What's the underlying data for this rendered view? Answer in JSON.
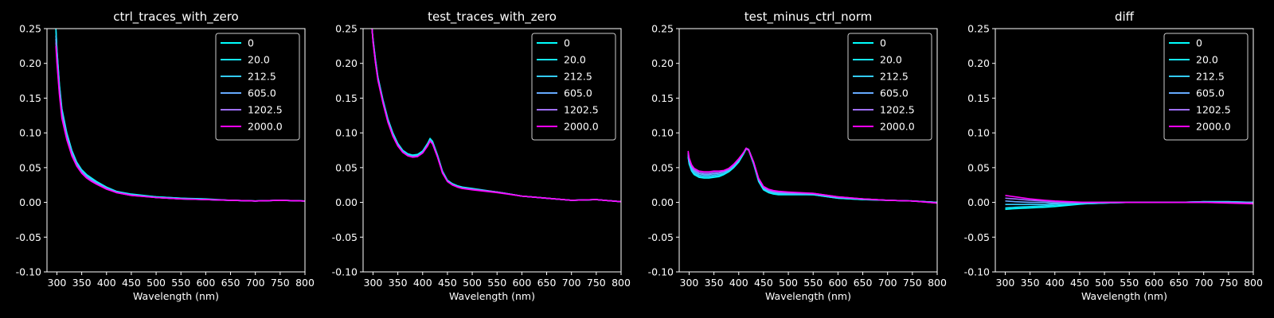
{
  "figure": {
    "background": "#000000",
    "foreground": "#ffffff"
  },
  "chart_data": [
    {
      "type": "line",
      "title": "ctrl_traces_with_zero",
      "xlabel": "Wavelength (nm)",
      "ylabel": "",
      "xlim": [
        280,
        800
      ],
      "ylim": [
        -0.1,
        0.25
      ],
      "xticks": [
        "300",
        "350",
        "400",
        "450",
        "500",
        "550",
        "600",
        "650",
        "700",
        "750",
        "800"
      ],
      "yticks": [
        "0.25",
        "0.20",
        "0.15",
        "0.10",
        "0.05",
        "0.00",
        "-0.05",
        "-0.10"
      ],
      "legend_position": "top-right",
      "x": [
        298,
        300,
        305,
        310,
        320,
        330,
        340,
        350,
        360,
        370,
        380,
        400,
        420,
        450,
        500,
        550,
        600,
        650,
        700,
        750,
        800
      ],
      "series": [
        {
          "name": "0",
          "color": "#00ffff",
          "values": [
            0.25,
            0.22,
            0.17,
            0.135,
            0.1,
            0.075,
            0.058,
            0.047,
            0.04,
            0.035,
            0.03,
            0.022,
            0.016,
            0.012,
            0.008,
            0.006,
            0.005,
            0.003,
            0.002,
            0.003,
            0.002
          ]
        },
        {
          "name": "20.0",
          "color": "#17e8ff",
          "values": [
            0.25,
            0.22,
            0.168,
            0.133,
            0.099,
            0.074,
            0.057,
            0.046,
            0.039,
            0.034,
            0.029,
            0.021,
            0.016,
            0.011,
            0.008,
            0.006,
            0.004,
            0.003,
            0.002,
            0.003,
            0.002
          ]
        },
        {
          "name": "212.5",
          "color": "#33ccff",
          "values": [
            0.24,
            0.215,
            0.165,
            0.13,
            0.097,
            0.072,
            0.056,
            0.045,
            0.038,
            0.033,
            0.028,
            0.021,
            0.015,
            0.011,
            0.007,
            0.005,
            0.004,
            0.003,
            0.002,
            0.003,
            0.002
          ]
        },
        {
          "name": "605.0",
          "color": "#66aaff",
          "values": [
            0.235,
            0.21,
            0.162,
            0.128,
            0.095,
            0.071,
            0.055,
            0.044,
            0.037,
            0.032,
            0.028,
            0.02,
            0.015,
            0.011,
            0.007,
            0.005,
            0.004,
            0.003,
            0.002,
            0.003,
            0.002
          ]
        },
        {
          "name": "1202.5",
          "color": "#a070ff",
          "values": [
            0.23,
            0.205,
            0.158,
            0.124,
            0.092,
            0.069,
            0.053,
            0.043,
            0.036,
            0.031,
            0.027,
            0.02,
            0.014,
            0.01,
            0.007,
            0.005,
            0.004,
            0.003,
            0.002,
            0.003,
            0.002
          ]
        },
        {
          "name": "2000.0",
          "color": "#ff00ff",
          "values": [
            0.225,
            0.2,
            0.155,
            0.121,
            0.09,
            0.067,
            0.052,
            0.042,
            0.035,
            0.03,
            0.026,
            0.019,
            0.014,
            0.01,
            0.007,
            0.005,
            0.004,
            0.003,
            0.002,
            0.003,
            0.002
          ]
        }
      ]
    },
    {
      "type": "line",
      "title": "test_traces_with_zero",
      "xlabel": "Wavelength (nm)",
      "ylabel": "",
      "xlim": [
        280,
        800
      ],
      "ylim": [
        -0.1,
        0.25
      ],
      "xticks": [
        "300",
        "350",
        "400",
        "450",
        "500",
        "550",
        "600",
        "650",
        "700",
        "750",
        "800"
      ],
      "yticks": [
        "0.25",
        "0.20",
        "0.15",
        "0.10",
        "0.05",
        "0.00",
        "-0.05",
        "-0.10"
      ],
      "legend_position": "top-right",
      "x": [
        298,
        300,
        305,
        310,
        320,
        330,
        340,
        350,
        360,
        370,
        380,
        390,
        400,
        410,
        415,
        420,
        430,
        440,
        450,
        460,
        470,
        480,
        500,
        550,
        600,
        650,
        700,
        750,
        800
      ],
      "series": [
        {
          "name": "0",
          "color": "#00ffff",
          "values": [
            0.25,
            0.235,
            0.205,
            0.18,
            0.148,
            0.12,
            0.1,
            0.085,
            0.075,
            0.07,
            0.068,
            0.069,
            0.074,
            0.085,
            0.092,
            0.088,
            0.068,
            0.045,
            0.032,
            0.027,
            0.024,
            0.022,
            0.02,
            0.015,
            0.009,
            0.006,
            0.003,
            0.004,
            0.001
          ]
        },
        {
          "name": "20.0",
          "color": "#17e8ff",
          "values": [
            0.25,
            0.234,
            0.204,
            0.179,
            0.147,
            0.119,
            0.099,
            0.084,
            0.074,
            0.069,
            0.067,
            0.068,
            0.073,
            0.084,
            0.091,
            0.087,
            0.067,
            0.044,
            0.031,
            0.026,
            0.023,
            0.021,
            0.019,
            0.015,
            0.009,
            0.006,
            0.003,
            0.004,
            0.001
          ]
        },
        {
          "name": "212.5",
          "color": "#33ccff",
          "values": [
            0.25,
            0.233,
            0.203,
            0.178,
            0.146,
            0.118,
            0.098,
            0.083,
            0.074,
            0.068,
            0.066,
            0.067,
            0.072,
            0.083,
            0.09,
            0.086,
            0.066,
            0.044,
            0.031,
            0.026,
            0.023,
            0.021,
            0.019,
            0.015,
            0.009,
            0.006,
            0.003,
            0.004,
            0.001
          ]
        },
        {
          "name": "605.0",
          "color": "#66aaff",
          "values": [
            0.25,
            0.232,
            0.202,
            0.177,
            0.145,
            0.117,
            0.097,
            0.083,
            0.073,
            0.068,
            0.066,
            0.067,
            0.072,
            0.083,
            0.089,
            0.085,
            0.066,
            0.043,
            0.031,
            0.026,
            0.023,
            0.021,
            0.019,
            0.015,
            0.009,
            0.006,
            0.003,
            0.004,
            0.001
          ]
        },
        {
          "name": "1202.5",
          "color": "#a070ff",
          "values": [
            0.25,
            0.231,
            0.201,
            0.176,
            0.144,
            0.116,
            0.096,
            0.082,
            0.072,
            0.067,
            0.065,
            0.066,
            0.071,
            0.082,
            0.089,
            0.085,
            0.065,
            0.043,
            0.03,
            0.025,
            0.022,
            0.02,
            0.019,
            0.015,
            0.009,
            0.006,
            0.003,
            0.004,
            0.001
          ]
        },
        {
          "name": "2000.0",
          "color": "#ff00ff",
          "values": [
            0.25,
            0.23,
            0.2,
            0.175,
            0.143,
            0.115,
            0.095,
            0.081,
            0.072,
            0.067,
            0.065,
            0.066,
            0.071,
            0.081,
            0.088,
            0.084,
            0.065,
            0.042,
            0.03,
            0.025,
            0.022,
            0.02,
            0.018,
            0.014,
            0.009,
            0.006,
            0.003,
            0.004,
            0.001
          ]
        }
      ]
    },
    {
      "type": "line",
      "title": "test_minus_ctrl_norm",
      "xlabel": "Wavelength (nm)",
      "ylabel": "",
      "xlim": [
        280,
        800
      ],
      "ylim": [
        -0.1,
        0.25
      ],
      "xticks": [
        "300",
        "350",
        "400",
        "450",
        "500",
        "550",
        "600",
        "650",
        "700",
        "750",
        "800"
      ],
      "yticks": [
        "0.25",
        "0.20",
        "0.15",
        "0.10",
        "0.05",
        "0.00",
        "-0.05",
        "-0.10"
      ],
      "legend_position": "top-right",
      "x": [
        298,
        300,
        305,
        310,
        320,
        330,
        340,
        350,
        360,
        370,
        380,
        390,
        400,
        410,
        415,
        420,
        430,
        440,
        450,
        460,
        470,
        480,
        500,
        550,
        600,
        650,
        700,
        750,
        800
      ],
      "series": [
        {
          "name": "0",
          "color": "#00ffff",
          "values": [
            0.065,
            0.055,
            0.045,
            0.04,
            0.036,
            0.035,
            0.035,
            0.036,
            0.037,
            0.04,
            0.044,
            0.05,
            0.058,
            0.07,
            0.077,
            0.075,
            0.055,
            0.03,
            0.018,
            0.014,
            0.012,
            0.011,
            0.011,
            0.011,
            0.006,
            0.004,
            0.003,
            0.002,
            0.0
          ]
        },
        {
          "name": "20.0",
          "color": "#17e8ff",
          "values": [
            0.066,
            0.056,
            0.046,
            0.041,
            0.037,
            0.036,
            0.036,
            0.037,
            0.038,
            0.041,
            0.045,
            0.051,
            0.059,
            0.071,
            0.078,
            0.076,
            0.056,
            0.031,
            0.019,
            0.015,
            0.013,
            0.012,
            0.012,
            0.011,
            0.006,
            0.004,
            0.003,
            0.002,
            0.0
          ]
        },
        {
          "name": "212.5",
          "color": "#33ccff",
          "values": [
            0.068,
            0.058,
            0.048,
            0.043,
            0.039,
            0.038,
            0.038,
            0.039,
            0.04,
            0.042,
            0.046,
            0.052,
            0.06,
            0.072,
            0.078,
            0.076,
            0.057,
            0.032,
            0.02,
            0.016,
            0.014,
            0.013,
            0.012,
            0.012,
            0.007,
            0.005,
            0.003,
            0.002,
            0.0
          ]
        },
        {
          "name": "605.0",
          "color": "#66aaff",
          "values": [
            0.07,
            0.06,
            0.05,
            0.045,
            0.041,
            0.04,
            0.04,
            0.041,
            0.042,
            0.044,
            0.047,
            0.053,
            0.061,
            0.072,
            0.078,
            0.076,
            0.058,
            0.033,
            0.021,
            0.017,
            0.015,
            0.014,
            0.013,
            0.012,
            0.007,
            0.005,
            0.003,
            0.002,
            0.0
          ]
        },
        {
          "name": "1202.5",
          "color": "#a070ff",
          "values": [
            0.072,
            0.062,
            0.052,
            0.047,
            0.043,
            0.042,
            0.042,
            0.043,
            0.043,
            0.045,
            0.048,
            0.054,
            0.062,
            0.072,
            0.078,
            0.076,
            0.058,
            0.034,
            0.022,
            0.018,
            0.016,
            0.015,
            0.014,
            0.013,
            0.008,
            0.005,
            0.003,
            0.002,
            -0.001
          ]
        },
        {
          "name": "2000.0",
          "color": "#ff00ff",
          "values": [
            0.074,
            0.064,
            0.054,
            0.049,
            0.045,
            0.044,
            0.044,
            0.045,
            0.045,
            0.046,
            0.049,
            0.055,
            0.063,
            0.072,
            0.078,
            0.075,
            0.058,
            0.035,
            0.023,
            0.019,
            0.017,
            0.016,
            0.015,
            0.013,
            0.008,
            0.005,
            0.003,
            0.002,
            -0.001
          ]
        }
      ]
    },
    {
      "type": "line",
      "title": "diff",
      "xlabel": "Wavelength (nm)",
      "ylabel": "",
      "xlim": [
        280,
        800
      ],
      "ylim": [
        -0.1,
        0.25
      ],
      "xticks": [
        "300",
        "350",
        "400",
        "450",
        "500",
        "550",
        "600",
        "650",
        "700",
        "750",
        "800"
      ],
      "yticks": [
        "0.25",
        "0.20",
        "0.15",
        "0.10",
        "0.05",
        "0.00",
        "-0.05",
        "-0.10"
      ],
      "legend_position": "top-right",
      "x": [
        300,
        320,
        350,
        380,
        400,
        430,
        460,
        500,
        550,
        600,
        650,
        700,
        750,
        800
      ],
      "series": [
        {
          "name": "0",
          "color": "#00ffff",
          "values": [
            -0.01,
            -0.009,
            -0.008,
            -0.007,
            -0.006,
            -0.004,
            -0.002,
            -0.001,
            0.0,
            0.0,
            0.0,
            0.001,
            0.001,
            0.0
          ]
        },
        {
          "name": "20.0",
          "color": "#17e8ff",
          "values": [
            -0.008,
            -0.007,
            -0.006,
            -0.005,
            -0.004,
            -0.003,
            -0.002,
            -0.001,
            0.0,
            0.0,
            0.0,
            0.001,
            0.001,
            0.0
          ]
        },
        {
          "name": "212.5",
          "color": "#33ccff",
          "values": [
            -0.003,
            -0.003,
            -0.003,
            -0.003,
            -0.002,
            -0.001,
            -0.001,
            0.0,
            0.0,
            0.0,
            0.0,
            0.001,
            0.0,
            0.0
          ]
        },
        {
          "name": "605.0",
          "color": "#66aaff",
          "values": [
            0.002,
            0.001,
            0.0,
            0.0,
            -0.001,
            -0.001,
            0.0,
            0.0,
            0.0,
            0.0,
            0.0,
            0.0,
            0.0,
            0.0
          ]
        },
        {
          "name": "1202.5",
          "color": "#a070ff",
          "values": [
            0.006,
            0.005,
            0.003,
            0.002,
            0.001,
            0.0,
            0.0,
            0.0,
            0.0,
            0.0,
            0.0,
            0.0,
            0.0,
            -0.001
          ]
        },
        {
          "name": "2000.0",
          "color": "#ff00ff",
          "values": [
            0.01,
            0.008,
            0.005,
            0.003,
            0.002,
            0.001,
            0.0,
            0.0,
            0.0,
            0.0,
            0.0,
            0.0,
            -0.001,
            -0.002
          ]
        }
      ]
    }
  ]
}
